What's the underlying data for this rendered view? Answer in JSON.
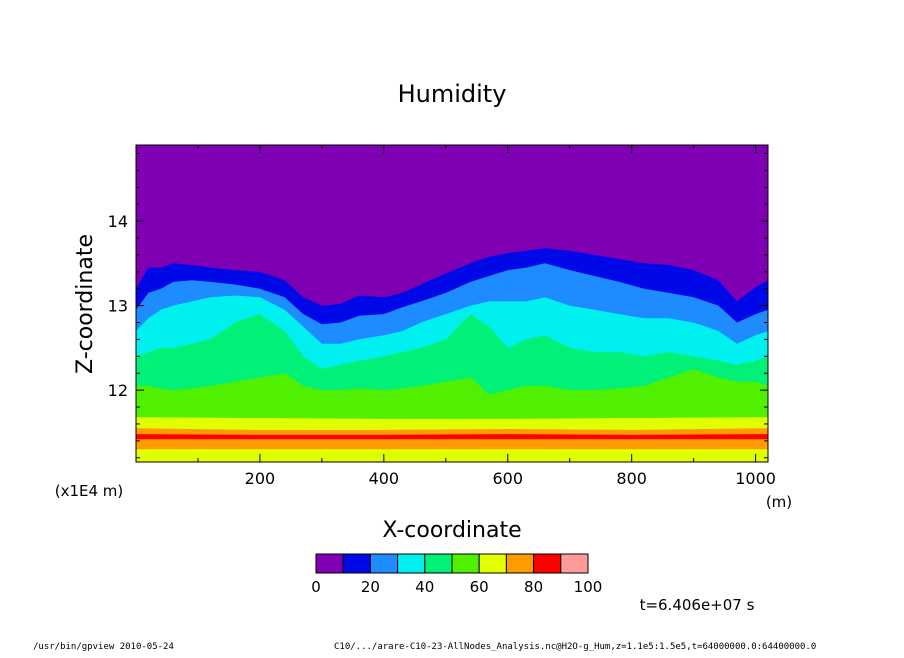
{
  "chart_data": {
    "type": "heatmap",
    "title": "Humidity",
    "xlabel": "X-coordinate",
    "ylabel": "Z-coordinate",
    "x_unit": "(m)",
    "y_unit": "(x1E4 m)",
    "xlim": [
      0,
      1020
    ],
    "ylim": [
      11.15,
      14.9
    ],
    "x_ticks": [
      200,
      400,
      600,
      800,
      1000
    ],
    "x_tick_labels": [
      "200",
      "400",
      "600",
      "800",
      "1000"
    ],
    "y_ticks": [
      12,
      13,
      14
    ],
    "y_tick_labels": [
      "12",
      "13",
      "14"
    ],
    "time_label": "t=6.406e+07 s",
    "contour_levels": [
      0,
      10,
      20,
      30,
      40,
      50,
      60,
      70,
      80,
      90,
      100
    ],
    "colorbar": {
      "tick_values": [
        0,
        20,
        40,
        60,
        80,
        100
      ],
      "tick_labels": [
        "0",
        "20",
        "40",
        "60",
        "80",
        "100"
      ],
      "colors": [
        "#7f00b3",
        "#0008e8",
        "#1e8cff",
        "#00f0f0",
        "#00f078",
        "#50f000",
        "#e0ff00",
        "#ff9a00",
        "#ff0000",
        "#ff9a9a"
      ]
    },
    "contour_boundaries_z": [
      {
        "upper_level": 10,
        "x": [
          0,
          20,
          40,
          60,
          90,
          120,
          160,
          200,
          240,
          270,
          300,
          330,
          360,
          400,
          430,
          460,
          500,
          540,
          570,
          600,
          630,
          660,
          700,
          740,
          780,
          820,
          860,
          900,
          940,
          970,
          1000,
          1020
        ],
        "z": [
          13.5,
          13.65,
          13.6,
          13.65,
          13.6,
          13.58,
          13.55,
          13.5,
          13.45,
          13.3,
          13.18,
          13.2,
          13.3,
          13.25,
          13.3,
          13.4,
          13.5,
          13.62,
          13.72,
          13.78,
          13.8,
          13.82,
          13.78,
          13.75,
          13.72,
          13.7,
          13.65,
          13.6,
          13.5,
          13.25,
          13.4,
          13.45
        ]
      },
      {
        "upper_level": 20,
        "x": [
          0,
          20,
          40,
          60,
          90,
          120,
          160,
          200,
          240,
          270,
          300,
          330,
          360,
          400,
          430,
          460,
          500,
          540,
          570,
          600,
          630,
          660,
          700,
          740,
          780,
          820,
          860,
          900,
          940,
          970,
          1000,
          1020
        ],
        "z": [
          13.2,
          13.45,
          13.45,
          13.5,
          13.48,
          13.45,
          13.42,
          13.4,
          13.3,
          13.1,
          13.0,
          13.02,
          13.12,
          13.1,
          13.15,
          13.25,
          13.38,
          13.5,
          13.58,
          13.62,
          13.65,
          13.68,
          13.65,
          13.6,
          13.55,
          13.5,
          13.48,
          13.42,
          13.3,
          13.05,
          13.22,
          13.3
        ]
      },
      {
        "upper_level": 30,
        "x": [
          0,
          20,
          40,
          60,
          90,
          120,
          160,
          200,
          240,
          270,
          300,
          330,
          360,
          400,
          430,
          460,
          500,
          540,
          570,
          600,
          630,
          660,
          700,
          740,
          780,
          820,
          860,
          900,
          940,
          970,
          1000,
          1020
        ],
        "z": [
          12.95,
          13.15,
          13.2,
          13.28,
          13.3,
          13.28,
          13.25,
          13.2,
          13.1,
          12.9,
          12.78,
          12.8,
          12.88,
          12.9,
          12.98,
          13.05,
          13.15,
          13.28,
          13.35,
          13.42,
          13.45,
          13.5,
          13.42,
          13.35,
          13.28,
          13.2,
          13.15,
          13.1,
          13.0,
          12.8,
          12.9,
          12.95
        ]
      },
      {
        "upper_level": 40,
        "x": [
          0,
          20,
          40,
          60,
          90,
          120,
          160,
          200,
          240,
          270,
          300,
          330,
          360,
          400,
          430,
          460,
          500,
          540,
          570,
          600,
          630,
          660,
          700,
          740,
          780,
          820,
          860,
          900,
          940,
          970,
          1000,
          1020
        ],
        "z": [
          12.7,
          12.85,
          12.95,
          13.0,
          13.05,
          13.1,
          13.12,
          13.1,
          12.95,
          12.75,
          12.55,
          12.55,
          12.6,
          12.65,
          12.7,
          12.8,
          12.9,
          13.0,
          13.05,
          13.05,
          13.05,
          13.1,
          13.0,
          12.95,
          12.9,
          12.85,
          12.85,
          12.8,
          12.7,
          12.55,
          12.65,
          12.7
        ]
      },
      {
        "upper_level": 50,
        "x": [
          0,
          20,
          40,
          60,
          90,
          120,
          160,
          200,
          240,
          270,
          300,
          330,
          360,
          400,
          430,
          460,
          500,
          540,
          570,
          600,
          630,
          660,
          700,
          740,
          780,
          820,
          860,
          900,
          940,
          970,
          1000,
          1020
        ],
        "z": [
          12.4,
          12.45,
          12.5,
          12.5,
          12.55,
          12.6,
          12.8,
          12.9,
          12.7,
          12.4,
          12.25,
          12.3,
          12.35,
          12.4,
          12.45,
          12.5,
          12.6,
          12.9,
          12.75,
          12.5,
          12.6,
          12.65,
          12.5,
          12.45,
          12.45,
          12.4,
          12.45,
          12.4,
          12.35,
          12.3,
          12.35,
          12.4
        ]
      },
      {
        "upper_level": 60,
        "x": [
          0,
          20,
          40,
          60,
          90,
          120,
          160,
          200,
          240,
          270,
          300,
          330,
          360,
          400,
          430,
          460,
          500,
          540,
          570,
          600,
          630,
          660,
          700,
          740,
          780,
          820,
          860,
          900,
          940,
          970,
          1000,
          1020
        ],
        "z": [
          12.05,
          12.05,
          12.02,
          12.0,
          12.02,
          12.05,
          12.1,
          12.15,
          12.2,
          12.05,
          12.0,
          12.0,
          12.02,
          12.0,
          12.02,
          12.05,
          12.1,
          12.15,
          11.95,
          12.0,
          12.05,
          12.05,
          12.0,
          12.0,
          12.02,
          12.05,
          12.15,
          12.25,
          12.15,
          12.1,
          12.1,
          12.05
        ]
      },
      {
        "upper_level": 70,
        "x": [
          0,
          200,
          400,
          600,
          800,
          1020
        ],
        "z": [
          11.68,
          11.67,
          11.66,
          11.66,
          11.67,
          11.68
        ]
      },
      {
        "upper_level": 80,
        "x": [
          0,
          200,
          400,
          600,
          800,
          1020
        ],
        "z": [
          11.55,
          11.53,
          11.53,
          11.54,
          11.53,
          11.55
        ]
      },
      {
        "upper_level": 90,
        "x": [
          0,
          200,
          400,
          600,
          800,
          1020
        ],
        "z": [
          11.48,
          11.47,
          11.47,
          11.48,
          11.47,
          11.48
        ]
      },
      {
        "upper_level": 80,
        "x": [
          0,
          200,
          400,
          600,
          800,
          1020
        ],
        "z": [
          11.42,
          11.42,
          11.42,
          11.42,
          11.42,
          11.42
        ]
      },
      {
        "upper_level": 70,
        "x": [
          0,
          200,
          400,
          600,
          800,
          1020
        ],
        "z": [
          11.3,
          11.3,
          11.3,
          11.3,
          11.3,
          11.3
        ]
      }
    ]
  },
  "footer": {
    "left": "/usr/bin/gpview  2010-05-24",
    "right": "C10/.../arare-C10-23-AllNodes_Analysis.nc@H2O-g_Hum,z=1.1e5:1.5e5,t=64000000.0:64400000.0"
  }
}
